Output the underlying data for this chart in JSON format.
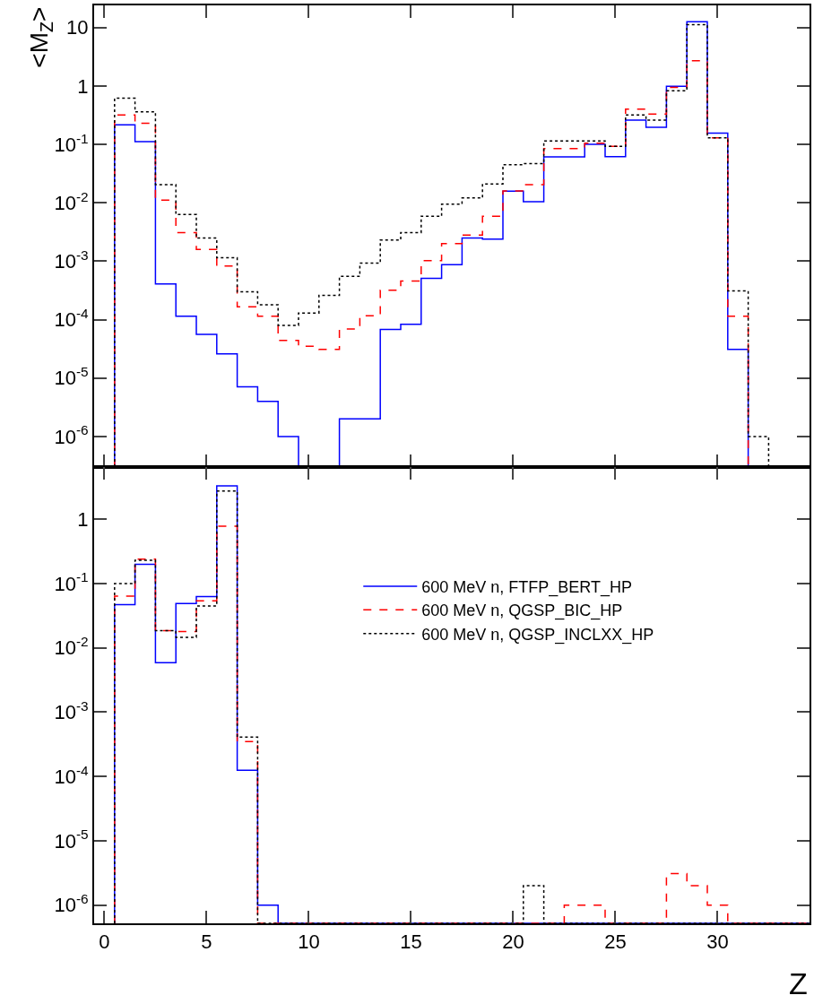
{
  "chart_data": [
    {
      "type": "histogram",
      "ylabel": "<M$_{Z}$>",
      "log": true,
      "marker": "none",
      "tick_labels": "y",
      "bins": [
        0.5,
        1.5,
        2.5,
        3.5,
        4.5,
        5.5,
        6.5,
        7.5,
        8.5,
        9.5,
        10.5,
        11.5,
        12.5,
        13.5,
        14.5,
        15.5,
        16.5,
        17.5,
        18.5,
        19.5,
        20.5,
        21.5,
        22.5,
        23.5,
        24.5,
        25.5,
        26.5,
        27.5,
        28.5,
        29.5,
        30.5,
        31.5,
        32.5,
        33.5,
        34.5
      ],
      "xlim": [
        -0.5,
        34.5
      ],
      "xticks": [
        0,
        5,
        10,
        15,
        20,
        25,
        30
      ],
      "ylim": [
        3e-07,
        24
      ],
      "yticks": [
        {
          "value": 1e-06,
          "label": "10$^{-6}$"
        },
        {
          "value": 1e-05,
          "label": "10$^{-5}$"
        },
        {
          "value": 0.0001,
          "label": "10$^{-4}$"
        },
        {
          "value": 0.001,
          "label": "10$^{-3}$"
        },
        {
          "value": 0.01,
          "label": "10$^{-2}$"
        },
        {
          "value": 0.1,
          "label": "10$^{-1}$"
        },
        1,
        10
      ],
      "series": [
        {
          "color": "#0000ff",
          "line_style": "solid",
          "values": [
            0.216,
            0.112,
            0.00041,
            0.000115,
            5.6e-05,
            2.6e-05,
            7.1e-06,
            4e-06,
            1e-06,
            null,
            null,
            2e-06,
            2e-06,
            6.8e-05,
            8.3e-05,
            0.00051,
            0.00087,
            0.0025,
            0.0024,
            0.0159,
            0.0105,
            0.061,
            0.061,
            0.1,
            0.062,
            0.26,
            0.197,
            0.99,
            12.6,
            0.156,
            3.1e-05,
            null,
            null,
            null
          ]
        },
        {
          "color": "#ff0000",
          "line_style": "dashed",
          "values": [
            0.32,
            0.23,
            0.0111,
            0.0031,
            0.0016,
            0.00083,
            0.000166,
            0.000115,
            4.4e-05,
            3.5e-05,
            3.1e-05,
            6.9e-05,
            0.000117,
            0.00032,
            0.00046,
            0.00102,
            0.002,
            0.0028,
            0.0059,
            0.016,
            0.0205,
            0.085,
            0.085,
            0.105,
            0.093,
            0.4,
            0.33,
            0.95,
            2.7,
            0.13,
            0.000115,
            null,
            null,
            null
          ]
        },
        {
          "color": "#000000",
          "line_style": "dotted",
          "values": [
            0.62,
            0.36,
            0.0205,
            0.0063,
            0.0025,
            0.00115,
            0.0003,
            0.00018,
            8e-05,
            0.00013,
            0.00026,
            0.00055,
            0.00093,
            0.0023,
            0.0031,
            0.0059,
            0.0095,
            0.0121,
            0.021,
            0.045,
            0.047,
            0.115,
            0.115,
            0.115,
            0.093,
            0.32,
            0.26,
            0.83,
            11.2,
            0.13,
            0.00031,
            1e-06,
            null,
            null
          ]
        }
      ]
    },
    {
      "type": "histogram",
      "xlabel": "Z",
      "log": true,
      "marker": "none",
      "legend": "right",
      "bins": [
        0.5,
        1.5,
        2.5,
        3.5,
        4.5,
        5.5,
        6.5,
        7.5,
        8.5,
        9.5,
        10.5,
        11.5,
        12.5,
        13.5,
        14.5,
        15.5,
        16.5,
        17.5,
        18.5,
        19.5,
        20.5,
        21.5,
        22.5,
        23.5,
        24.5,
        25.5,
        26.5,
        27.5,
        28.5,
        29.5,
        30.5,
        31.5,
        32.5,
        33.5,
        34.5
      ],
      "xlim": [
        -0.5,
        34.5
      ],
      "xticks": [
        0,
        5,
        10,
        15,
        20,
        25,
        30
      ],
      "ylim": [
        5.2e-07,
        6.5
      ],
      "yticks": [
        {
          "value": 1e-06,
          "label": "10$^{-6}$"
        },
        {
          "value": 1e-05,
          "label": "10$^{-5}$"
        },
        {
          "value": 0.0001,
          "label": "10$^{-4}$"
        },
        {
          "value": 0.001,
          "label": "10$^{-3}$"
        },
        {
          "value": 0.01,
          "label": "10$^{-2}$"
        },
        {
          "value": 0.1,
          "label": "10$^{-1}$"
        },
        1
      ],
      "series": [
        {
          "name": "600 MeV n, FTFP_BERT_HP",
          "color": "#0000ff",
          "line_style": "solid",
          "values": [
            0.047,
            0.2,
            0.0059,
            0.049,
            0.063,
            3.3,
            0.000125,
            1e-06,
            null,
            null,
            null,
            null,
            null,
            null,
            null,
            null,
            null,
            null,
            null,
            null,
            null,
            null,
            null,
            null,
            null,
            null,
            null,
            null,
            null,
            null,
            null,
            null,
            null,
            null
          ]
        },
        {
          "name": "600 MeV n, QGSP_BIC_HP",
          "color": "#ff0000",
          "line_style": "dashed",
          "values": [
            0.064,
            0.24,
            0.0186,
            0.018,
            0.054,
            0.78,
            0.00035,
            null,
            null,
            null,
            null,
            null,
            null,
            null,
            null,
            null,
            null,
            null,
            null,
            null,
            null,
            null,
            1e-06,
            1e-06,
            null,
            null,
            null,
            3.1e-06,
            2e-06,
            1e-06,
            null,
            null,
            null,
            null
          ]
        },
        {
          "name": "600 MeV n, QGSP_INCLXX_HP",
          "color": "#000000",
          "line_style": "dotted",
          "values": [
            0.1,
            0.23,
            0.0186,
            0.0146,
            0.045,
            2.75,
            0.00041,
            null,
            null,
            null,
            null,
            null,
            null,
            null,
            null,
            null,
            null,
            null,
            null,
            null,
            2e-06,
            null,
            null,
            null,
            null,
            null,
            null,
            null,
            null,
            null,
            null,
            null,
            null,
            null
          ]
        }
      ]
    }
  ]
}
